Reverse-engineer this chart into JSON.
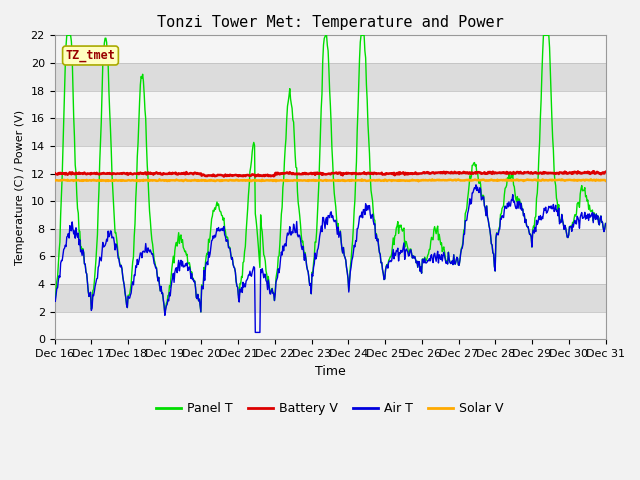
{
  "title": "Tonzi Tower Met: Temperature and Power",
  "xlabel": "Time",
  "ylabel": "Temperature (C) / Power (V)",
  "ylim": [
    0,
    22
  ],
  "yticks": [
    0,
    2,
    4,
    6,
    8,
    10,
    12,
    14,
    16,
    18,
    20,
    22
  ],
  "x_labels": [
    "Dec 16",
    "Dec 17",
    "Dec 18",
    "Dec 19",
    "Dec 20",
    "Dec 21",
    "Dec 22",
    "Dec 23",
    "Dec 24",
    "Dec 25",
    "Dec 26",
    "Dec 27",
    "Dec 28",
    "Dec 29",
    "Dec 30",
    "Dec 31"
  ],
  "panel_color": "#00DD00",
  "battery_color": "#DD0000",
  "air_color": "#0000DD",
  "solar_color": "#FFAA00",
  "fig_bg": "#F2F2F2",
  "plot_bg": "#E8E8E8",
  "band_light": "#F5F5F5",
  "band_dark": "#DCDCDC",
  "legend_tag": "TZ_tmet",
  "legend_labels": [
    "Panel T",
    "Battery V",
    "Air T",
    "Solar V"
  ],
  "title_fontsize": 11,
  "label_fontsize": 9,
  "tick_fontsize": 8,
  "legend_fontsize": 9
}
